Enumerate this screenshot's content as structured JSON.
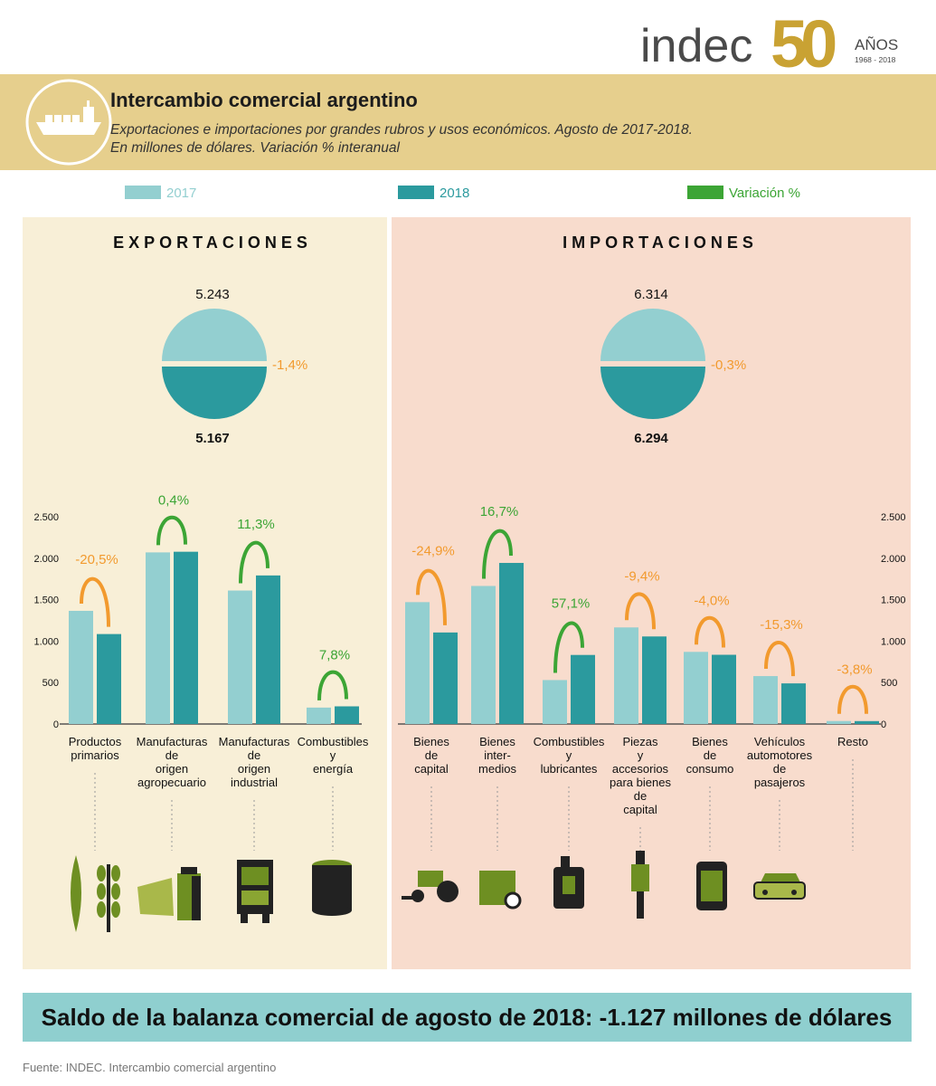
{
  "header": {
    "logo": "indec",
    "logo_number": "50",
    "logo_years_label": "AÑOS",
    "logo_years": "1968 - 2018",
    "title": "Intercambio comercial argentino",
    "subtitle_lines": [
      "Exportaciones e importaciones por grandes rubros y usos económicos. Agosto de 2017-2018.",
      "En millones de dólares. Variación % interanual"
    ]
  },
  "chart_data": [
    {
      "type": "bar",
      "title": "EXPORTACIONES",
      "categories": [
        "Productos\nprimarios",
        "Manufacturas\nde\norigen\nagropecuario",
        "Manufacturas\nde\norigen\nindustrial",
        "Combustibles\ny\nenergía"
      ],
      "series": [
        {
          "name": "2017",
          "color": "#93cfd0",
          "values": [
            1365,
            2070,
            1610,
            198
          ]
        },
        {
          "name": "2018",
          "color": "#2b9a9e",
          "values": [
            1085,
            2078,
            1792,
            213
          ]
        }
      ],
      "variation": {
        "name": "Variación %",
        "values": [
          -20.5,
          0.4,
          11.3,
          7.8
        ],
        "value_labels": [
          "-20,5%",
          "0,4%",
          "11,3%",
          "7,8%"
        ],
        "positive_color": "#3ca535",
        "negative_color": "#f29a2e"
      },
      "totals": {
        "values": [
          5243,
          5167
        ],
        "value_labels": [
          "5.243",
          "5.167"
        ],
        "variation": -1.4,
        "variation_label": "-1,4%"
      },
      "ylim": [
        0,
        2500
      ],
      "yticks": [
        0,
        500,
        {
          "value": 1000,
          "label": "1.000"
        },
        {
          "value": 1500,
          "label": "1.500"
        },
        {
          "value": 2000,
          "label": "2.000"
        },
        {
          "value": 2500,
          "label": "2.500"
        }
      ],
      "axis_side": "left"
    },
    {
      "type": "bar",
      "title": "IMPORTACIONES",
      "categories": [
        "Bienes\nde\ncapital",
        "Bienes\ninter-\nmedios",
        "Combustibles\ny\nlubricantes",
        "Piezas\ny\naccesorios\npara bienes\nde\ncapital",
        "Bienes\nde\nconsumo",
        "Vehículos\nautomotores\nde\npasajeros",
        "Resto"
      ],
      "series": [
        {
          "color": "#93cfd0",
          "values": [
            1470,
            1665,
            530,
            1165,
            870,
            578,
            36
          ]
        },
        {
          "color": "#2b9a9e",
          "values": [
            1104,
            1943,
            833,
            1056,
            835,
            490,
            35
          ]
        }
      ],
      "variation": {
        "values": [
          -24.9,
          16.7,
          57.1,
          -9.4,
          -4.0,
          -15.3,
          -3.8
        ],
        "value_labels": [
          "-24,9%",
          "16,7%",
          "57,1%",
          "-9,4%",
          "-4,0%",
          "-15,3%",
          "-3,8%"
        ],
        "positive_color": "#3ca535",
        "negative_color": "#f29a2e"
      },
      "totals": {
        "values": [
          6314,
          6294
        ],
        "value_labels": [
          "6.314",
          "6.294"
        ],
        "variation": -0.3,
        "variation_label": "-0,3%"
      },
      "ylim": [
        0,
        2500
      ],
      "yticks": [
        0,
        500,
        {
          "value": 1000,
          "label": "1.000"
        },
        {
          "value": 1500,
          "label": "1.500"
        },
        {
          "value": 2000,
          "label": "2.000"
        },
        {
          "value": 2500,
          "label": "2.500"
        }
      ],
      "axis_side": "right"
    }
  ],
  "footer": {
    "balance": "Saldo de la balanza comercial de agosto de 2018: -1.127 millones de dólares",
    "source": "Fuente: INDEC. Intercambio comercial argentino"
  }
}
